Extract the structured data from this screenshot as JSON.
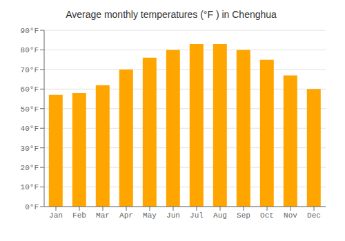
{
  "chart_data": {
    "type": "bar",
    "title": "Average monthly temperatures (°F ) in Chenghua",
    "categories": [
      "Jan",
      "Feb",
      "Mar",
      "Apr",
      "May",
      "Jun",
      "Jul",
      "Aug",
      "Sep",
      "Oct",
      "Nov",
      "Dec"
    ],
    "values": [
      57,
      58,
      62,
      70,
      76,
      80,
      83,
      83,
      80,
      75,
      67,
      60
    ],
    "color": "#FFA500",
    "ylim": [
      0,
      90
    ],
    "yticks": [
      {
        "value": 0,
        "label": "0°F"
      },
      {
        "value": 10,
        "label": "10°F"
      },
      {
        "value": 20,
        "label": "20°F"
      },
      {
        "value": 30,
        "label": "30°F"
      },
      {
        "value": 40,
        "label": "40°F"
      },
      {
        "value": 50,
        "label": "50°F"
      },
      {
        "value": 60,
        "label": "60°F"
      },
      {
        "value": 70,
        "label": "70°F"
      },
      {
        "value": 80,
        "label": "80°F"
      },
      {
        "value": 90,
        "label": "90°F"
      }
    ],
    "grid": true
  }
}
